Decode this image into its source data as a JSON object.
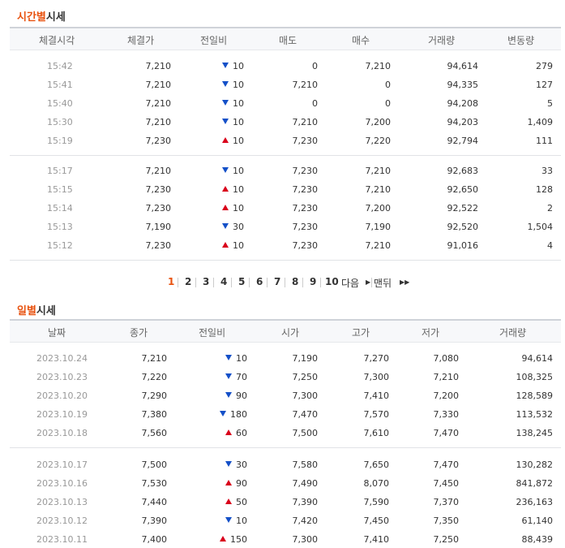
{
  "time_section": {
    "title_accent": "시간별",
    "title_rest": "시세",
    "headers": [
      "체결시각",
      "체결가",
      "전일비",
      "매도",
      "매수",
      "거래량",
      "변동량"
    ],
    "groups": [
      [
        {
          "time": "15:42",
          "price": "7,210",
          "dir": "down",
          "change": "10",
          "ask": "0",
          "bid": "7,210",
          "volume": "94,614",
          "delta": "279"
        },
        {
          "time": "15:41",
          "price": "7,210",
          "dir": "down",
          "change": "10",
          "ask": "7,210",
          "bid": "0",
          "volume": "94,335",
          "delta": "127"
        },
        {
          "time": "15:40",
          "price": "7,210",
          "dir": "down",
          "change": "10",
          "ask": "0",
          "bid": "0",
          "volume": "94,208",
          "delta": "5"
        },
        {
          "time": "15:30",
          "price": "7,210",
          "dir": "down",
          "change": "10",
          "ask": "7,210",
          "bid": "7,200",
          "volume": "94,203",
          "delta": "1,409"
        },
        {
          "time": "15:19",
          "price": "7,230",
          "dir": "up",
          "change": "10",
          "ask": "7,230",
          "bid": "7,220",
          "volume": "92,794",
          "delta": "111"
        }
      ],
      [
        {
          "time": "15:17",
          "price": "7,210",
          "dir": "down",
          "change": "10",
          "ask": "7,230",
          "bid": "7,210",
          "volume": "92,683",
          "delta": "33"
        },
        {
          "time": "15:15",
          "price": "7,230",
          "dir": "up",
          "change": "10",
          "ask": "7,230",
          "bid": "7,210",
          "volume": "92,650",
          "delta": "128"
        },
        {
          "time": "15:14",
          "price": "7,230",
          "dir": "up",
          "change": "10",
          "ask": "7,230",
          "bid": "7,200",
          "volume": "92,522",
          "delta": "2"
        },
        {
          "time": "15:13",
          "price": "7,190",
          "dir": "down",
          "change": "30",
          "ask": "7,230",
          "bid": "7,190",
          "volume": "92,520",
          "delta": "1,504"
        },
        {
          "time": "15:12",
          "price": "7,230",
          "dir": "up",
          "change": "10",
          "ask": "7,230",
          "bid": "7,210",
          "volume": "91,016",
          "delta": "4"
        }
      ]
    ]
  },
  "pagination": {
    "current": "1",
    "pages": [
      "2",
      "3",
      "4",
      "5",
      "6",
      "7",
      "8",
      "9",
      "10"
    ],
    "next_label": "다음",
    "last_label": "맨뒤"
  },
  "daily_section": {
    "title_accent": "일별",
    "title_rest": "시세",
    "headers": [
      "날짜",
      "종가",
      "전일비",
      "시가",
      "고가",
      "저가",
      "거래량"
    ],
    "groups": [
      [
        {
          "date": "2023.10.24",
          "close": "7,210",
          "dir": "down",
          "change": "10",
          "open": "7,190",
          "high": "7,270",
          "low": "7,080",
          "volume": "94,614"
        },
        {
          "date": "2023.10.23",
          "close": "7,220",
          "dir": "down",
          "change": "70",
          "open": "7,250",
          "high": "7,300",
          "low": "7,210",
          "volume": "108,325"
        },
        {
          "date": "2023.10.20",
          "close": "7,290",
          "dir": "down",
          "change": "90",
          "open": "7,300",
          "high": "7,410",
          "low": "7,200",
          "volume": "128,589"
        },
        {
          "date": "2023.10.19",
          "close": "7,380",
          "dir": "down",
          "change": "180",
          "open": "7,470",
          "high": "7,570",
          "low": "7,330",
          "volume": "113,532"
        },
        {
          "date": "2023.10.18",
          "close": "7,560",
          "dir": "up",
          "change": "60",
          "open": "7,500",
          "high": "7,610",
          "low": "7,470",
          "volume": "138,245"
        }
      ],
      [
        {
          "date": "2023.10.17",
          "close": "7,500",
          "dir": "down",
          "change": "30",
          "open": "7,580",
          "high": "7,650",
          "low": "7,470",
          "volume": "130,282"
        },
        {
          "date": "2023.10.16",
          "close": "7,530",
          "dir": "up",
          "change": "90",
          "open": "7,490",
          "high": "8,070",
          "low": "7,450",
          "volume": "841,872"
        },
        {
          "date": "2023.10.13",
          "close": "7,440",
          "dir": "up",
          "change": "50",
          "open": "7,390",
          "high": "7,590",
          "low": "7,370",
          "volume": "236,163"
        },
        {
          "date": "2023.10.12",
          "close": "7,390",
          "dir": "down",
          "change": "10",
          "open": "7,420",
          "high": "7,450",
          "low": "7,350",
          "volume": "61,140"
        },
        {
          "date": "2023.10.11",
          "close": "7,400",
          "dir": "up",
          "change": "150",
          "open": "7,300",
          "high": "7,410",
          "low": "7,250",
          "volume": "88,439"
        }
      ]
    ]
  }
}
